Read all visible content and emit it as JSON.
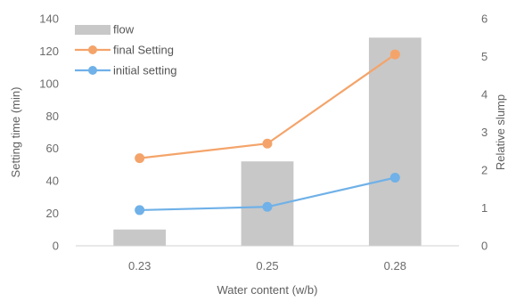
{
  "chart_data": {
    "type": "bar",
    "categories": [
      "0.23",
      "0.25",
      "0.28"
    ],
    "xlabel": "Water content (w/b)",
    "ylabel": "Setting time (min)",
    "y2label": "Relative slump",
    "ylim": [
      0,
      140
    ],
    "y2lim": [
      0,
      6
    ],
    "yticks": [
      "0",
      "20",
      "40",
      "60",
      "80",
      "100",
      "120",
      "140"
    ],
    "y2ticks": [
      "0",
      "1",
      "2",
      "3",
      "4",
      "5",
      "6"
    ],
    "grid": false,
    "legend_position": "top-left",
    "series": [
      {
        "name": "flow",
        "type": "bar",
        "axis": "right",
        "values": [
          0.43,
          2.23,
          5.5
        ],
        "color": "#c8c8c8"
      },
      {
        "name": "final Setting",
        "type": "line",
        "axis": "left",
        "values": [
          54,
          63,
          118
        ],
        "color": "#f4a46a"
      },
      {
        "name": "initial setting",
        "type": "line",
        "axis": "left",
        "values": [
          22,
          24,
          42
        ],
        "color": "#6fb1e8"
      }
    ]
  }
}
